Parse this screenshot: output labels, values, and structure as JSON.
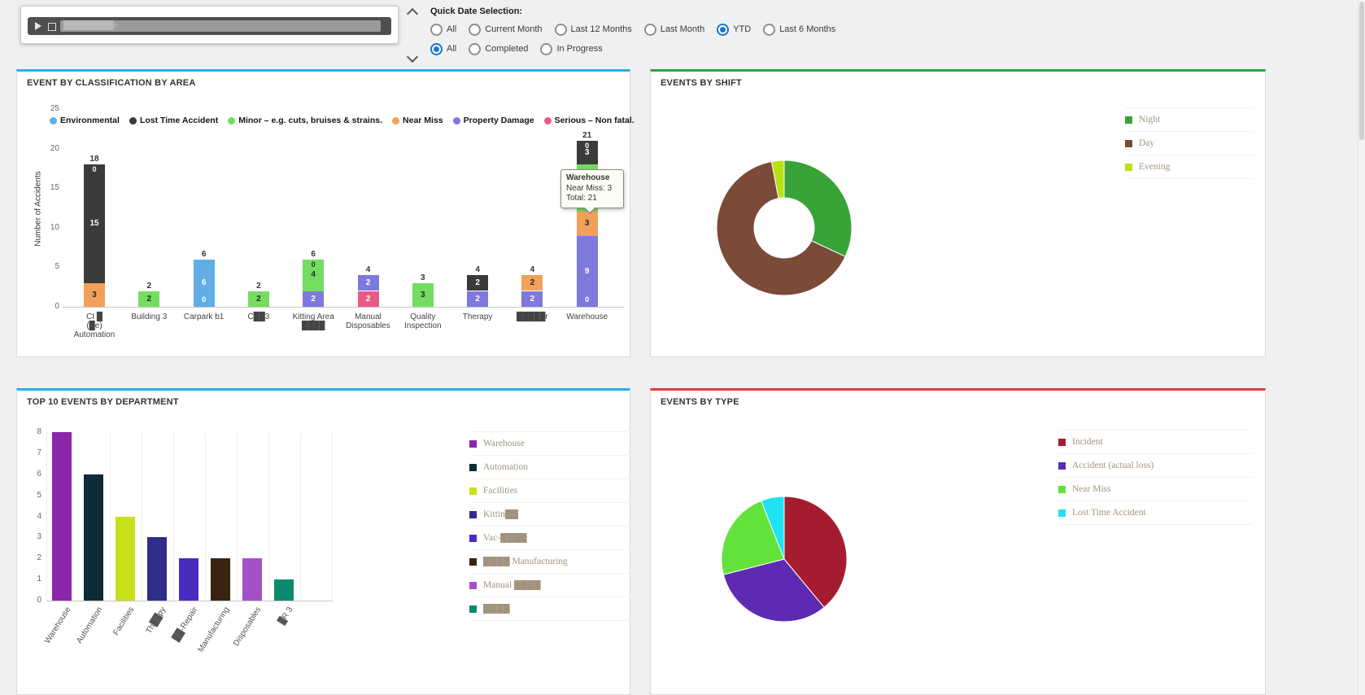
{
  "header": {
    "icons": {
      "play_icon": "css-triangle-right",
      "checkbox_icon": "css-hollow-square",
      "collapse_up_icon": "css-chevron-up",
      "collapse_down_icon": "css-chevron-down"
    },
    "player": {
      "redacted_label": "██████████e"
    },
    "quick_date": {
      "title": "Quick Date Selection:",
      "date_options": [
        {
          "label": "All",
          "selected": false
        },
        {
          "label": "Current Month",
          "selected": false
        },
        {
          "label": "Last 12 Months",
          "selected": false
        },
        {
          "label": "Last Month",
          "selected": false
        },
        {
          "label": "YTD",
          "selected": true
        },
        {
          "label": "Last 6 Months",
          "selected": false
        }
      ],
      "status_options": [
        {
          "label": "All",
          "selected": true
        },
        {
          "label": "Completed",
          "selected": false
        },
        {
          "label": "In Progress",
          "selected": false
        }
      ]
    }
  },
  "panels": {
    "area": {
      "title": "EVENT BY CLASSIFICATION BY AREA",
      "accent": "#29b0e5"
    },
    "shift": {
      "title": "EVENTS BY SHIFT",
      "accent": "#2fa43c"
    },
    "dept": {
      "title": "TOP 10 EVENTS BY DEPARTMENT",
      "accent": "#29b0e5"
    },
    "type": {
      "title": "EVENTS BY TYPE",
      "accent": "#e23b3b"
    }
  },
  "tooltip": {
    "title": "Warehouse",
    "lines": [
      "Near Miss: 3",
      "Total: 21"
    ]
  },
  "chart_data": [
    {
      "id": "area",
      "type": "stacked-bar",
      "title": "EVENT BY CLASSIFICATION BY AREA",
      "ylabel": "Number of Accidents",
      "ylim": [
        0,
        25
      ],
      "yticks": [
        0,
        5,
        10,
        15,
        20,
        25
      ],
      "legend": [
        {
          "name": "Environmental",
          "color": "#61aee6",
          "label_color": "#ffffff"
        },
        {
          "name": "Lost Time Accident",
          "color": "#3b3b3b",
          "label_color": "#ffffff"
        },
        {
          "name": "Minor – e.g. cuts, bruises & strains.",
          "color": "#74dd61",
          "label_color": "#2a2a2a"
        },
        {
          "name": "Near Miss",
          "color": "#f0a159",
          "label_color": "#2a2a2a"
        },
        {
          "name": "Property Damage",
          "color": "#7e79dd",
          "label_color": "#ffffff"
        },
        {
          "name": "Serious – Non fatal.",
          "color": "#e85a86",
          "label_color": "#ffffff"
        }
      ],
      "categories": [
        {
          "label": "CI █\n(█e)\nAutomation",
          "total": 18,
          "segments": [
            {
              "series": "Near Miss",
              "value": 3
            },
            {
              "series": "Lost Time Accident",
              "value": 15
            },
            {
              "series": "Environmental",
              "value": 0
            }
          ]
        },
        {
          "label": "Building 3",
          "total": 2,
          "segments": [
            {
              "series": "Minor – e.g. cuts, bruises & strains.",
              "value": 2
            }
          ]
        },
        {
          "label": "Carpark b1",
          "total": 6,
          "segments": [
            {
              "series": "Lost Time Accident",
              "value": 0
            },
            {
              "series": "Environmental",
              "value": 6
            }
          ]
        },
        {
          "label": "C██3",
          "total": 2,
          "segments": [
            {
              "series": "Minor – e.g. cuts, bruises & strains.",
              "value": 2
            }
          ]
        },
        {
          "label": "Kitting Area\n████",
          "total": 6,
          "segments": [
            {
              "series": "Property Damage",
              "value": 2
            },
            {
              "series": "Minor – e.g. cuts, bruises & strains.",
              "value": 4
            },
            {
              "series": "Environmental",
              "value": 0
            }
          ]
        },
        {
          "label": "Manual\nDisposables",
          "total": 4,
          "segments": [
            {
              "series": "Serious – Non fatal.",
              "value": 2
            },
            {
              "series": "Property Damage",
              "value": 2
            }
          ]
        },
        {
          "label": "Quality\nInspection",
          "total": 3,
          "segments": [
            {
              "series": "Minor – e.g. cuts, bruises & strains.",
              "value": 3
            }
          ]
        },
        {
          "label": "Therapy",
          "total": 4,
          "segments": [
            {
              "series": "Property Damage",
              "value": 2
            },
            {
              "series": "Lost Time Accident",
              "value": 2
            }
          ]
        },
        {
          "label": "█████r",
          "total": 4,
          "segments": [
            {
              "series": "Property Damage",
              "value": 2
            },
            {
              "series": "Near Miss",
              "value": 2
            }
          ]
        },
        {
          "label": "Warehouse",
          "total": 21,
          "segments": [
            {
              "series": "Serious – Non fatal.",
              "value": 0
            },
            {
              "series": "Property Damage",
              "value": 9
            },
            {
              "series": "Near Miss",
              "value": 3
            },
            {
              "series": "Minor – e.g. cuts, bruises & strains.",
              "value": 6
            },
            {
              "series": "Lost Time Accident",
              "value": 3
            },
            {
              "series": "Environmental",
              "value": 0
            }
          ]
        }
      ]
    },
    {
      "id": "shift",
      "type": "donut",
      "title": "EVENTS BY SHIFT",
      "legend_position": "top-right",
      "series": [
        {
          "name": "Night",
          "color": "#38a336",
          "value": 32
        },
        {
          "name": "Day",
          "color": "#7b4b38",
          "value": 65
        },
        {
          "name": "Evening",
          "color": "#b8e118",
          "value": 3
        }
      ]
    },
    {
      "id": "dept",
      "type": "bar",
      "title": "TOP 10 EVENTS BY DEPARTMENT",
      "ylim": [
        0,
        8
      ],
      "yticks": [
        0,
        1,
        2,
        3,
        4,
        5,
        6,
        7,
        8
      ],
      "bars": [
        {
          "label": "Warehouse",
          "value": 8,
          "color": "#8c25a8"
        },
        {
          "label": "Automation",
          "value": 6,
          "color": "#0e2b38"
        },
        {
          "label": "Facilities",
          "value": 4,
          "color": "#c8e019"
        },
        {
          "label": "Th██py",
          "value": 3,
          "color": "#2f2d8a"
        },
        {
          "label": "██-Repair",
          "value": 2,
          "color": "#4a2bbf"
        },
        {
          "label": "Manufacturing",
          "value": 2,
          "color": "#3a2410"
        },
        {
          "label": "Disposables",
          "value": 2,
          "color": "#a650c8"
        },
        {
          "label": "█R 3",
          "value": 1,
          "color": "#0c8a70"
        }
      ],
      "legend": [
        {
          "name": "Warehouse",
          "color": "#8c25a8"
        },
        {
          "name": "Automation",
          "color": "#0e2b38"
        },
        {
          "name": "Facilities",
          "color": "#c8e019"
        },
        {
          "name": "Kittin██",
          "color": "#2f2d8a"
        },
        {
          "name": "Vac-████",
          "color": "#4a2bbf"
        },
        {
          "name": "████ Manufacturing",
          "color": "#3a2410"
        },
        {
          "name": "Manual ████",
          "color": "#a650c8"
        },
        {
          "name": "████",
          "color": "#0c8a70"
        }
      ]
    },
    {
      "id": "type",
      "type": "pie",
      "title": "EVENTS BY TYPE",
      "legend_position": "top-right",
      "series": [
        {
          "name": "Incident",
          "color": "#a51c30",
          "value": 39
        },
        {
          "name": "Accident (actual loss)",
          "color": "#5e2ab4",
          "value": 32
        },
        {
          "name": "Near Miss",
          "color": "#62e23a",
          "value": 23
        },
        {
          "name": "Lost Time Accident",
          "color": "#1ee3f5",
          "value": 6
        }
      ]
    }
  ]
}
